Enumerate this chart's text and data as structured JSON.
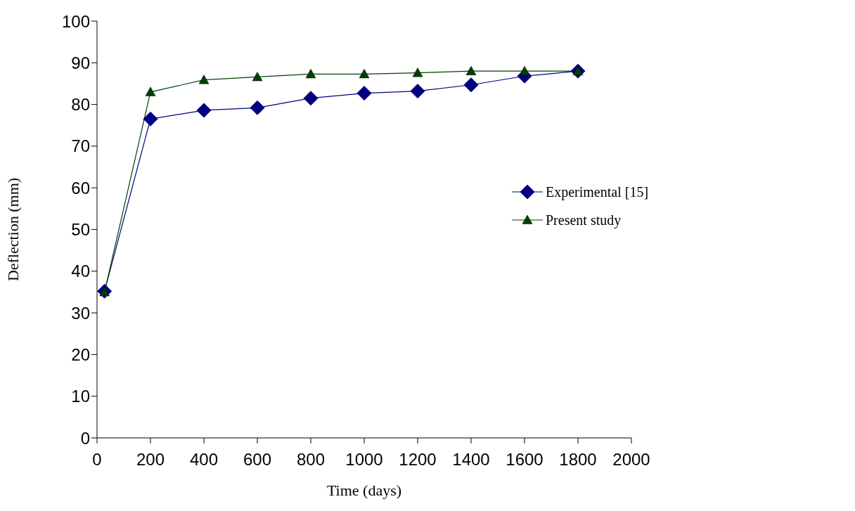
{
  "chart_data": {
    "type": "line",
    "xlabel": "Time (days)",
    "ylabel": "Deflection (mm)",
    "x": [
      28,
      200,
      400,
      600,
      800,
      1000,
      1200,
      1400,
      1600,
      1800
    ],
    "series": [
      {
        "name": "Experimental [15]",
        "color": "#000080",
        "marker": "diamond",
        "values": [
          35.2,
          76.5,
          78.6,
          79.2,
          81.5,
          82.7,
          83.2,
          84.7,
          86.8,
          88.0
        ]
      },
      {
        "name": "Present study",
        "color": "#004000",
        "marker": "triangle",
        "values": [
          35.0,
          83.0,
          85.9,
          86.6,
          87.3,
          87.3,
          87.6,
          88.0,
          88.0,
          88.0
        ]
      }
    ],
    "xlim": [
      0,
      2000
    ],
    "xticks": [
      0,
      200,
      400,
      600,
      800,
      1000,
      1200,
      1400,
      1600,
      1800,
      2000
    ],
    "ylim": [
      0,
      100
    ],
    "yticks": [
      0,
      10,
      20,
      30,
      40,
      50,
      60,
      70,
      80,
      90,
      100
    ],
    "grid": false,
    "legend": "right",
    "line_style": "solid"
  }
}
